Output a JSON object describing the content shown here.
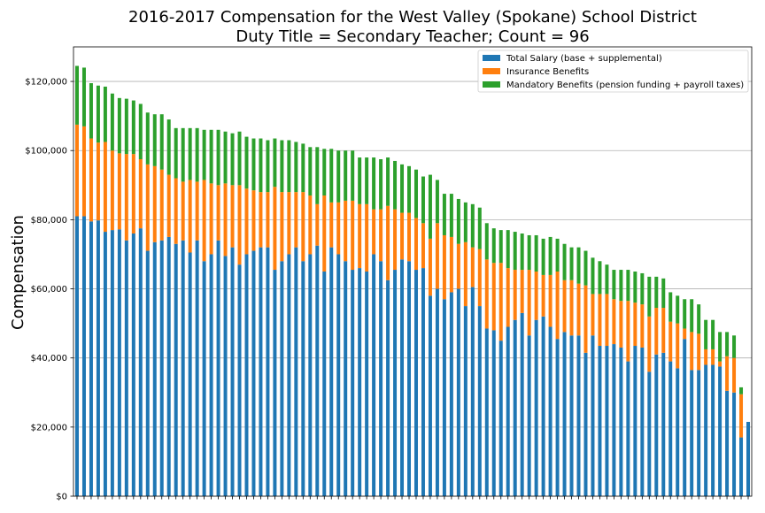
{
  "chart_data": {
    "type": "bar",
    "stacked": true,
    "title_line1": "2016-2017 Compensation for the West Valley (Spokane) School District",
    "title_line2": "Duty Title = Secondary Teacher; Count = 96",
    "ylabel": "Compensation",
    "xlabel": "",
    "ylim": [
      0,
      130000
    ],
    "yticks": [
      0,
      20000,
      40000,
      60000,
      80000,
      100000,
      120000
    ],
    "ytick_labels": [
      "$0",
      "$20,000",
      "$40,000",
      "$60,000",
      "$80,000",
      "$100,000",
      "$120,000"
    ],
    "grid": "horizontal",
    "legend_position": "top-right",
    "series": [
      {
        "name": "Total Salary (base + supplemental)",
        "color": "#1f77b4",
        "values": [
          81000,
          81000,
          79500,
          79800,
          76500,
          77000,
          77200,
          74000,
          76000,
          77500,
          71000,
          73500,
          74000,
          75000,
          73000,
          74000,
          70500,
          74000,
          68000,
          70000,
          74000,
          69500,
          72000,
          67000,
          70000,
          71000,
          72000,
          72000,
          65500,
          68000,
          70000,
          72000,
          68000,
          70000,
          72500,
          65000,
          72000,
          70000,
          68000,
          65500,
          66000,
          65000,
          70000,
          68000,
          62500,
          65500,
          68500,
          68000,
          65500,
          66000,
          58000,
          60000,
          57000,
          59000,
          60000,
          55000,
          60500,
          55000,
          48500,
          48000,
          45000,
          49000,
          51000,
          53000,
          46500,
          51000,
          52000,
          49000,
          45500,
          47500,
          46500,
          46500,
          41500,
          46500,
          43500,
          43500,
          44000,
          43000,
          39000,
          43500,
          43000,
          36000,
          41000,
          41500,
          39000,
          37000,
          45500,
          36500,
          36500,
          38000,
          38000,
          37500,
          30500,
          30000,
          17000,
          21500
        ]
      },
      {
        "name": "Insurance Benefits",
        "color": "#ff7f0e",
        "values": [
          26500,
          26000,
          24000,
          22500,
          26000,
          23000,
          22000,
          25000,
          23000,
          20000,
          25000,
          22000,
          20500,
          18000,
          19000,
          17000,
          21000,
          17000,
          23500,
          20500,
          16000,
          21000,
          18000,
          23000,
          19000,
          17500,
          16000,
          16000,
          24000,
          20000,
          18000,
          16000,
          20000,
          17000,
          12000,
          22000,
          13000,
          15000,
          17500,
          20000,
          18500,
          19500,
          13000,
          15000,
          21500,
          17500,
          13500,
          14000,
          15000,
          13000,
          16500,
          19000,
          18500,
          16000,
          13000,
          18500,
          11500,
          16500,
          20000,
          19500,
          22500,
          17000,
          14500,
          12500,
          19000,
          14000,
          12000,
          15000,
          19500,
          15000,
          16000,
          15000,
          19500,
          12000,
          15000,
          15000,
          13000,
          13500,
          17500,
          12500,
          12500,
          16000,
          13500,
          13000,
          11500,
          13000,
          3000,
          11000,
          10500,
          4500,
          4500,
          1500,
          10000,
          10000,
          12500,
          0
        ]
      },
      {
        "name": "Mandatory Benefits (pension funding + payroll taxes)",
        "color": "#2ca02c",
        "values": [
          17000,
          17000,
          16000,
          16500,
          16000,
          16500,
          16000,
          16000,
          15500,
          16000,
          15000,
          15000,
          16000,
          16000,
          14500,
          15500,
          15000,
          15500,
          14500,
          15500,
          16000,
          15000,
          15000,
          15500,
          15000,
          15000,
          15500,
          15000,
          14000,
          15000,
          15000,
          14500,
          14000,
          14000,
          16500,
          13500,
          15500,
          15000,
          14500,
          14500,
          13500,
          13500,
          15000,
          14500,
          14000,
          14000,
          14000,
          13500,
          14000,
          13500,
          18500,
          12500,
          12000,
          12500,
          13000,
          11500,
          12500,
          12000,
          10500,
          10000,
          9500,
          11000,
          11000,
          10500,
          10000,
          10500,
          10500,
          11000,
          9500,
          10500,
          9500,
          10500,
          10000,
          10500,
          9500,
          8500,
          8500,
          9000,
          9000,
          9000,
          9000,
          11500,
          9000,
          8500,
          8500,
          8000,
          8500,
          9500,
          8500,
          8500,
          8500,
          8500,
          7000,
          6500,
          2000,
          0
        ]
      }
    ]
  }
}
